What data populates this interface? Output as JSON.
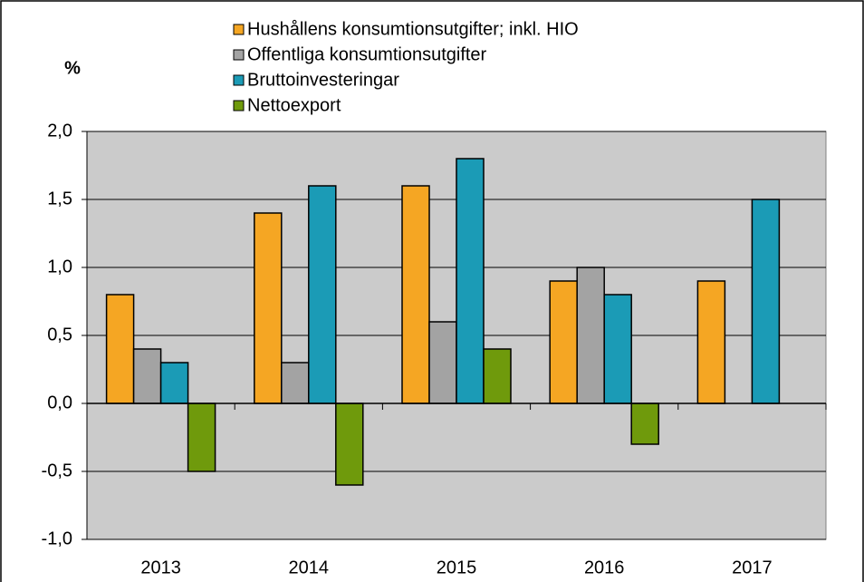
{
  "chart_data": {
    "type": "bar",
    "y_label": "%",
    "categories": [
      "2013",
      "2014",
      "2015",
      "2016",
      "2017"
    ],
    "series": [
      {
        "name": "Hushållens konsumtionsutgifter; inkl. HIO",
        "color": "#f5a623",
        "values": [
          0.8,
          1.4,
          1.6,
          0.9,
          0.9
        ]
      },
      {
        "name": "Offentliga konsumtionsutgifter",
        "color": "#a3a3a3",
        "values": [
          0.4,
          0.3,
          0.6,
          1.0,
          0
        ]
      },
      {
        "name": "Bruttoinvesteringar",
        "color": "#1b9bb6",
        "values": [
          0.3,
          1.6,
          1.8,
          0.8,
          1.5
        ]
      },
      {
        "name": "Nettoexport",
        "color": "#6f9a0c",
        "values": [
          -0.5,
          -0.6,
          0.4,
          -0.3,
          0
        ]
      }
    ],
    "ylim": [
      -1.0,
      2.0
    ],
    "yticks": [
      {
        "value": -1.0,
        "label": "-1,0"
      },
      {
        "value": -0.5,
        "label": "-0,5"
      },
      {
        "value": 0,
        "label": "0,0"
      },
      {
        "value": 0.5,
        "label": "0,5"
      },
      {
        "value": 1.0,
        "label": "1,0"
      },
      {
        "value": 1.5,
        "label": "1,5"
      },
      {
        "value": 2.0,
        "label": "2,0"
      }
    ],
    "grid": true
  }
}
